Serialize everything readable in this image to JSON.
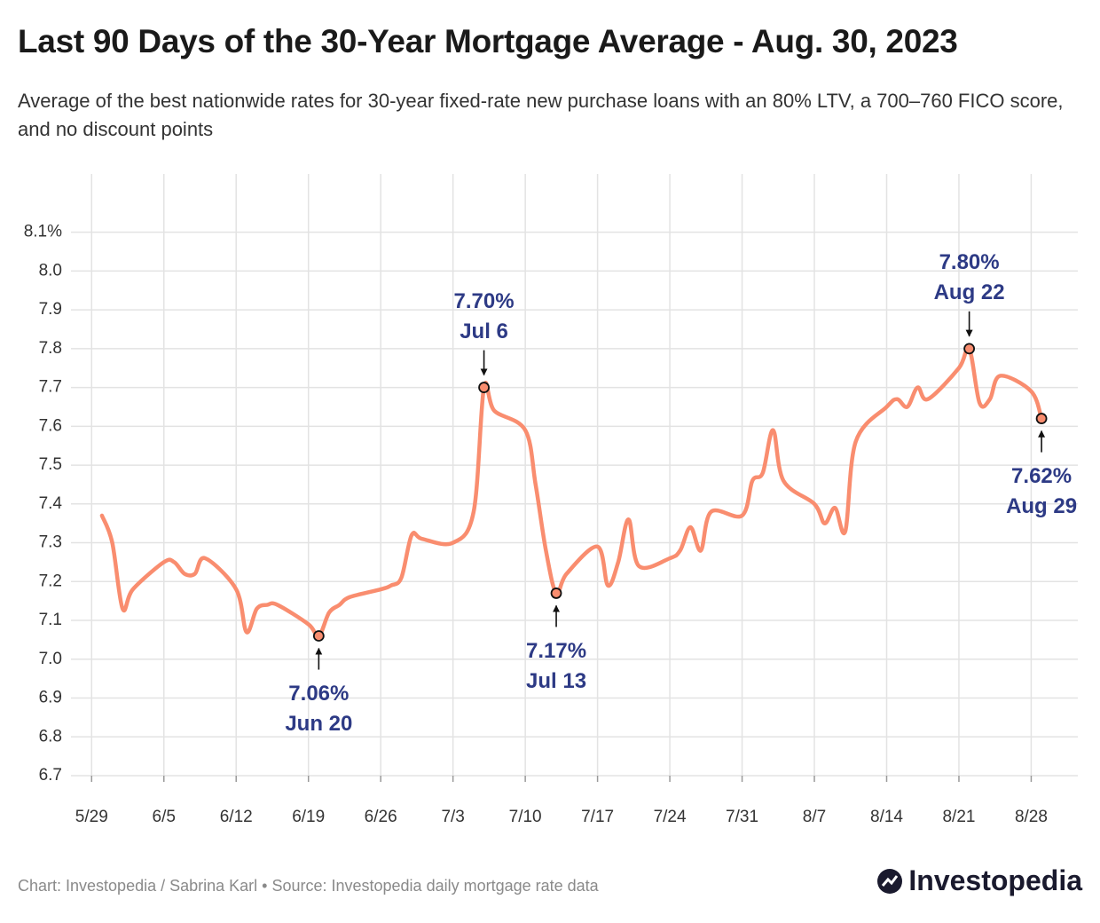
{
  "chart_data": {
    "type": "line",
    "title": "Last 90 Days of the 30-Year Mortgage Average - Aug. 30, 2023",
    "subtitle": "Average of the best nationwide rates for 30-year fixed-rate new purchase loans with an 80% LTV, a 700–760 FICO score, and no discount points",
    "source": "Chart: Investopedia / Sabrina Karl • Source: Investopedia daily mortgage rate data",
    "brand": "Investopedia",
    "color": "#f98d6f",
    "annotation_color": "#2d3a85",
    "grid": true,
    "x": [
      "5/30",
      "5/31",
      "6/1",
      "6/2",
      "6/5",
      "6/6",
      "6/7",
      "6/8",
      "6/9",
      "6/12",
      "6/13",
      "6/14",
      "6/15",
      "6/16",
      "6/19",
      "6/20",
      "6/21",
      "6/22",
      "6/23",
      "6/26",
      "6/27",
      "6/28",
      "6/29",
      "6/30",
      "7/3",
      "7/5",
      "7/6",
      "7/7",
      "7/10",
      "7/11",
      "7/12",
      "7/13",
      "7/14",
      "7/17",
      "7/18",
      "7/19",
      "7/20",
      "7/21",
      "7/24",
      "7/25",
      "7/26",
      "7/27",
      "7/28",
      "7/31",
      "8/1",
      "8/2",
      "8/3",
      "8/4",
      "8/7",
      "8/8",
      "8/9",
      "8/10",
      "8/11",
      "8/14",
      "8/15",
      "8/16",
      "8/17",
      "8/18",
      "8/21",
      "8/22",
      "8/23",
      "8/24",
      "8/25",
      "8/28",
      "8/29"
    ],
    "values": [
      7.37,
      7.3,
      7.13,
      7.18,
      7.25,
      7.25,
      7.22,
      7.22,
      7.26,
      7.18,
      7.07,
      7.13,
      7.14,
      7.14,
      7.09,
      7.06,
      7.12,
      7.14,
      7.16,
      7.18,
      7.19,
      7.21,
      7.32,
      7.31,
      7.3,
      7.38,
      7.7,
      7.64,
      7.59,
      7.45,
      7.28,
      7.17,
      7.22,
      7.29,
      7.19,
      7.25,
      7.36,
      7.24,
      7.26,
      7.28,
      7.34,
      7.28,
      7.38,
      7.37,
      7.46,
      7.48,
      7.59,
      7.46,
      7.4,
      7.35,
      7.39,
      7.33,
      7.56,
      7.65,
      7.67,
      7.65,
      7.7,
      7.67,
      7.75,
      7.8,
      7.66,
      7.67,
      7.73,
      7.69,
      7.62
    ],
    "annotations": [
      {
        "x": "6/20",
        "label": "7.06%",
        "date": "Jun 20",
        "placement": "below"
      },
      {
        "x": "7/6",
        "label": "7.70%",
        "date": "Jul 6",
        "placement": "above"
      },
      {
        "x": "7/13",
        "label": "7.17%",
        "date": "Jul 13",
        "placement": "below"
      },
      {
        "x": "8/22",
        "label": "7.80%",
        "date": "Aug 22",
        "placement": "above"
      },
      {
        "x": "8/29",
        "label": "7.62%",
        "date": "Aug 29",
        "placement": "below"
      }
    ],
    "xlim": [
      "5/27",
      "9/1"
    ],
    "xticks": [
      "5/29",
      "6/5",
      "6/12",
      "6/19",
      "6/26",
      "7/3",
      "7/10",
      "7/17",
      "7/24",
      "7/31",
      "8/7",
      "8/14",
      "8/21",
      "8/28"
    ],
    "ylim": [
      6.7,
      8.25
    ],
    "yticks": [
      6.7,
      6.8,
      6.9,
      {
        "value": 7,
        "label": "7.0"
      },
      7.1,
      7.2,
      7.3,
      7.4,
      7.5,
      7.6,
      7.7,
      7.8,
      7.9,
      {
        "value": 8,
        "label": "8.0"
      },
      {
        "value": 8.1,
        "label": "8.1%"
      }
    ]
  }
}
